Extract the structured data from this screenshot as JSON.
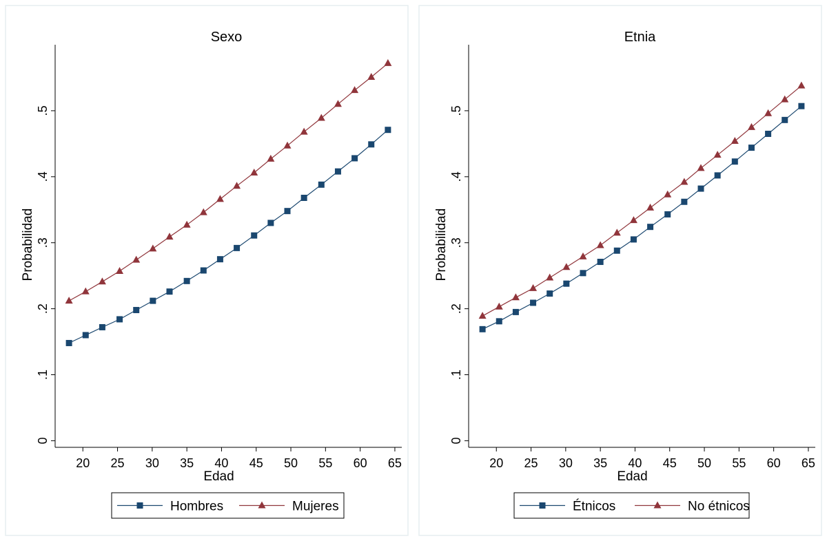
{
  "chart_data": [
    {
      "type": "line",
      "title": "Sexo",
      "xlabel": "Edad",
      "ylabel": "Probabilidad",
      "xlim": [
        16,
        66
      ],
      "ylim": [
        -0.01,
        0.6
      ],
      "xticks": [
        20,
        25,
        30,
        35,
        40,
        45,
        50,
        55,
        60,
        65
      ],
      "xtick_labels": [
        "20",
        "25",
        "30",
        "35",
        "40",
        "45",
        "50",
        "55",
        "60",
        "65"
      ],
      "yticks": [
        0,
        0.1,
        0.2,
        0.3,
        0.4,
        0.5
      ],
      "ytick_labels": [
        "0",
        ".1",
        ".2",
        ".3",
        ".4",
        ".5"
      ],
      "grid": false,
      "legend_position": "bottom",
      "x": [
        18,
        20.4,
        22.8,
        25.3,
        27.7,
        30.1,
        32.5,
        35,
        37.4,
        39.8,
        42.2,
        44.7,
        47.1,
        49.5,
        51.9,
        54.4,
        56.8,
        59.2,
        61.6,
        64
      ],
      "series": [
        {
          "name": "Hombres",
          "marker": "square",
          "color": "#1a476f",
          "values": [
            0.148,
            0.16,
            0.172,
            0.184,
            0.198,
            0.212,
            0.226,
            0.242,
            0.258,
            0.275,
            0.292,
            0.311,
            0.33,
            0.348,
            0.368,
            0.388,
            0.408,
            0.428,
            0.449,
            0.471
          ]
        },
        {
          "name": "Mujeres",
          "marker": "triangle",
          "color": "#90353b",
          "values": [
            0.212,
            0.226,
            0.241,
            0.257,
            0.274,
            0.291,
            0.309,
            0.327,
            0.346,
            0.366,
            0.386,
            0.406,
            0.427,
            0.447,
            0.468,
            0.489,
            0.51,
            0.531,
            0.551,
            0.572
          ]
        }
      ]
    },
    {
      "type": "line",
      "title": "Etnia",
      "xlabel": "Edad",
      "ylabel": "Probabilidad",
      "xlim": [
        16,
        66
      ],
      "ylim": [
        -0.01,
        0.6
      ],
      "xticks": [
        20,
        25,
        30,
        35,
        40,
        45,
        50,
        55,
        60,
        65
      ],
      "xtick_labels": [
        "20",
        "25",
        "30",
        "35",
        "40",
        "45",
        "50",
        "55",
        "60",
        "65"
      ],
      "yticks": [
        0,
        0.1,
        0.2,
        0.3,
        0.4,
        0.5
      ],
      "ytick_labels": [
        "0",
        ".1",
        ".2",
        ".3",
        ".4",
        ".5"
      ],
      "grid": false,
      "legend_position": "bottom",
      "x": [
        18,
        20.4,
        22.8,
        25.3,
        27.7,
        30.1,
        32.5,
        35,
        37.4,
        39.8,
        42.2,
        44.7,
        47.1,
        49.5,
        51.9,
        54.4,
        56.8,
        59.2,
        61.6,
        64
      ],
      "series": [
        {
          "name": "Étnicos",
          "marker": "square",
          "color": "#1a476f",
          "values": [
            0.169,
            0.181,
            0.195,
            0.209,
            0.223,
            0.238,
            0.254,
            0.271,
            0.288,
            0.305,
            0.324,
            0.343,
            0.362,
            0.382,
            0.402,
            0.423,
            0.444,
            0.465,
            0.486,
            0.507
          ]
        },
        {
          "name": "No étnicos",
          "marker": "triangle",
          "color": "#90353b",
          "values": [
            0.189,
            0.203,
            0.217,
            0.231,
            0.247,
            0.263,
            0.279,
            0.296,
            0.315,
            0.334,
            0.353,
            0.373,
            0.392,
            0.413,
            0.433,
            0.454,
            0.475,
            0.496,
            0.517,
            0.538
          ]
        }
      ]
    }
  ]
}
